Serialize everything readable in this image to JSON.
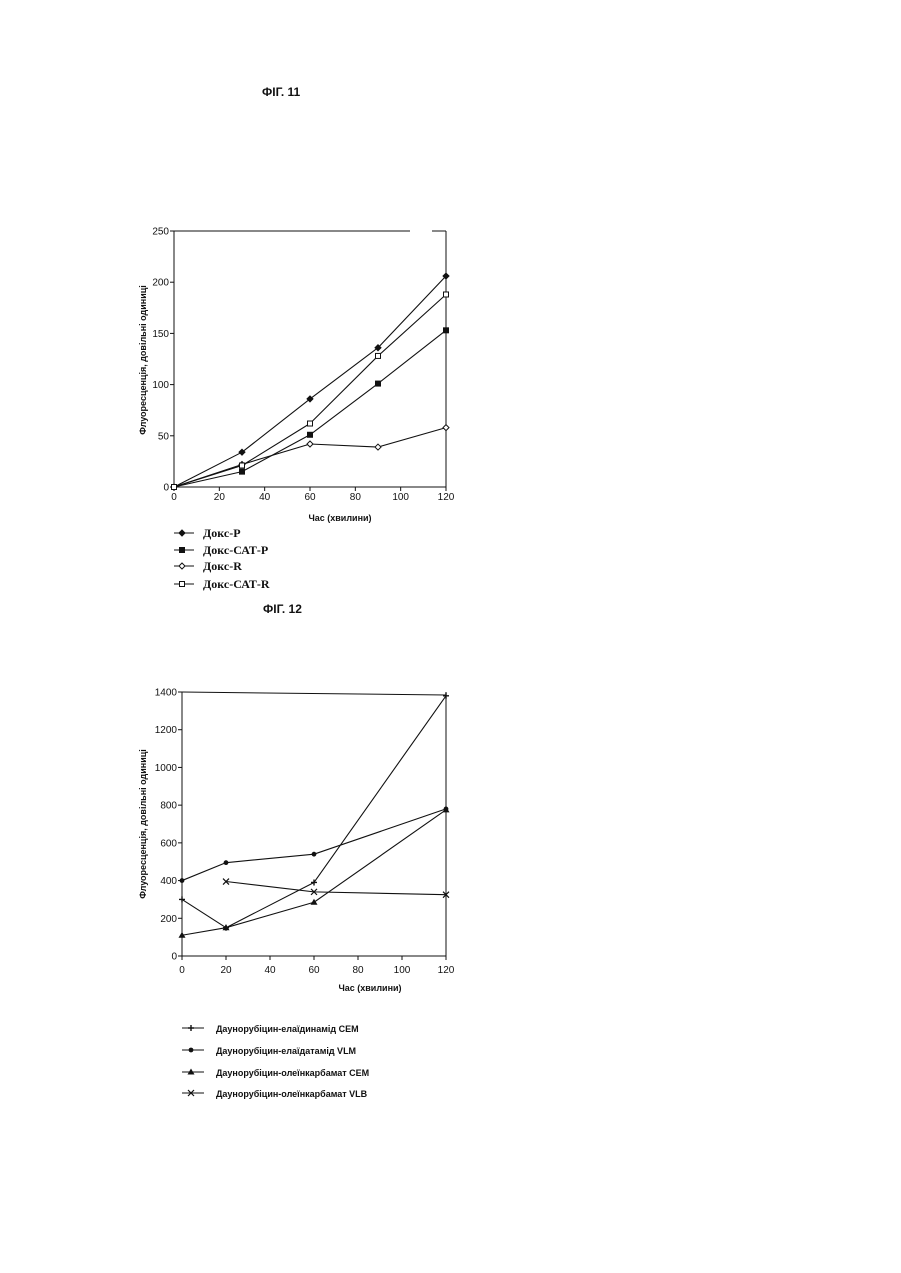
{
  "figures": {
    "fig11": {
      "label": "ФІГ. 11"
    },
    "fig12": {
      "label": "ФІГ. 12"
    }
  },
  "chart_data": [
    {
      "type": "line",
      "x": [
        0,
        30,
        60,
        90,
        120
      ],
      "xticks": [
        "0",
        "20",
        "40",
        "60",
        "80",
        "100",
        "120"
      ],
      "yticks": [
        "0",
        "50",
        "100",
        "150",
        "200",
        "250"
      ],
      "xlim": [
        0,
        120
      ],
      "ylim": [
        0,
        250
      ],
      "xlabel": "Час (хвилини)",
      "ylabel": "Флуоресценція, довільні одиниці",
      "grid": false,
      "legend_position": "bottom-left",
      "series": [
        {
          "name": "Докс-Р",
          "marker": "diamond-filled",
          "values": [
            0,
            34,
            86,
            136,
            206
          ]
        },
        {
          "name": "Докс-САТ-Р",
          "marker": "square-filled",
          "values": [
            0,
            15,
            51,
            101,
            153
          ]
        },
        {
          "name": "Докс-R",
          "marker": "diamond-open",
          "values": [
            0,
            22,
            42,
            39,
            58
          ]
        },
        {
          "name": "Докс-САТ-R",
          "marker": "square-open",
          "values": [
            0,
            21,
            62,
            128,
            188
          ]
        }
      ]
    },
    {
      "type": "line",
      "x": [
        0,
        20,
        60,
        120
      ],
      "xticks": [
        "0",
        "20",
        "40",
        "60",
        "80",
        "100",
        "120"
      ],
      "yticks": [
        "0",
        "200",
        "400",
        "600",
        "800",
        "1000",
        "1200",
        "1400"
      ],
      "xlim": [
        0,
        120
      ],
      "ylim": [
        0,
        1400
      ],
      "xlabel": "Час (хвилини)",
      "ylabel": "Флуоресценція, довільні одиниці",
      "grid": false,
      "legend_position": "bottom-left",
      "series": [
        {
          "name": "Даунорубіцин-елаїдинамід СЕМ",
          "marker": "plus",
          "values": [
            300,
            150,
            390,
            1380
          ]
        },
        {
          "name": "Даунорубіцин-елаїдатамід VLM",
          "marker": "dot",
          "values": [
            400,
            495,
            540,
            780
          ]
        },
        {
          "name": "Даунорубіцин-олеїнкарбамат СЕМ",
          "marker": "triangle",
          "values": [
            110,
            150,
            285,
            775
          ]
        },
        {
          "name": "Даунорубіцин-олеїнкарбамат VLB",
          "marker": "x",
          "values": [
            null,
            395,
            340,
            325
          ]
        }
      ]
    }
  ]
}
